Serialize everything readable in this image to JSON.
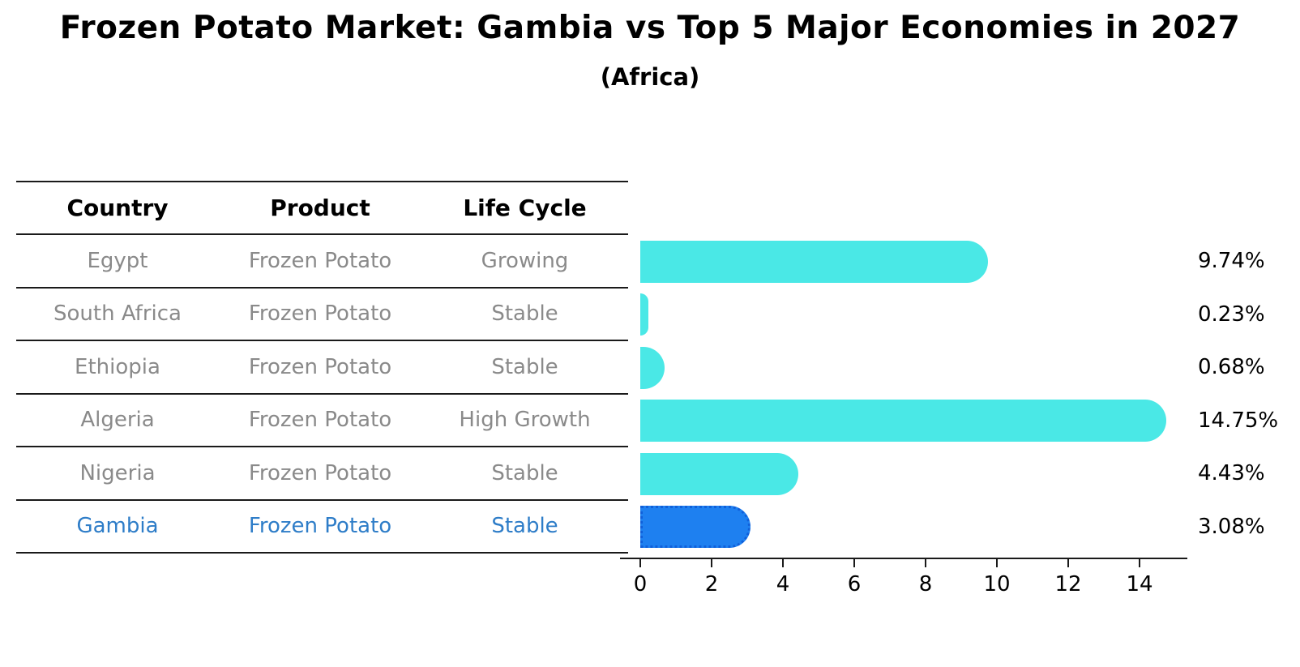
{
  "header": {
    "title": "Frozen Potato Market: Gambia vs Top 5 Major Economies in 2027",
    "subtitle": "(Africa)"
  },
  "table": {
    "headers": [
      "Country",
      "Product",
      "Life Cycle"
    ],
    "rows": [
      {
        "country": "Egypt",
        "product": "Frozen Potato",
        "life_cycle": "Growing",
        "highlight": false
      },
      {
        "country": "South Africa",
        "product": "Frozen Potato",
        "life_cycle": "Stable",
        "highlight": false
      },
      {
        "country": "Ethiopia",
        "product": "Frozen Potato",
        "life_cycle": "Stable",
        "highlight": false
      },
      {
        "country": "Algeria",
        "product": "Frozen Potato",
        "life_cycle": "High Growth",
        "highlight": false
      },
      {
        "country": "Nigeria",
        "product": "Frozen Potato",
        "life_cycle": "Stable",
        "highlight": false
      },
      {
        "country": "Gambia",
        "product": "Frozen Potato",
        "life_cycle": "Stable",
        "highlight": true
      }
    ]
  },
  "chart_data": {
    "type": "bar",
    "orientation": "horizontal",
    "title": "Frozen Potato Market: Gambia vs Top 5 Major Economies in 2027",
    "subtitle": "(Africa)",
    "categories": [
      "Egypt",
      "South Africa",
      "Ethiopia",
      "Algeria",
      "Nigeria",
      "Gambia"
    ],
    "values": [
      9.74,
      0.23,
      0.68,
      14.75,
      4.43,
      3.08
    ],
    "value_labels": [
      "9.74%",
      "0.23%",
      "0.68%",
      "14.75%",
      "4.43%",
      "3.08%"
    ],
    "unit": "percent",
    "x_ticks": [
      0,
      2,
      4,
      6,
      8,
      10,
      12,
      14
    ],
    "xlim": [
      0,
      15.9
    ],
    "grid": false,
    "legend": "none",
    "bar_color": "#4ae8e6",
    "highlight_color": "#1e80f0",
    "highlight_border_color": "#1060da",
    "highlight_index": 5,
    "highlight_text_color": "#2e7dc8",
    "table_text_color": "#8a8a8a"
  }
}
